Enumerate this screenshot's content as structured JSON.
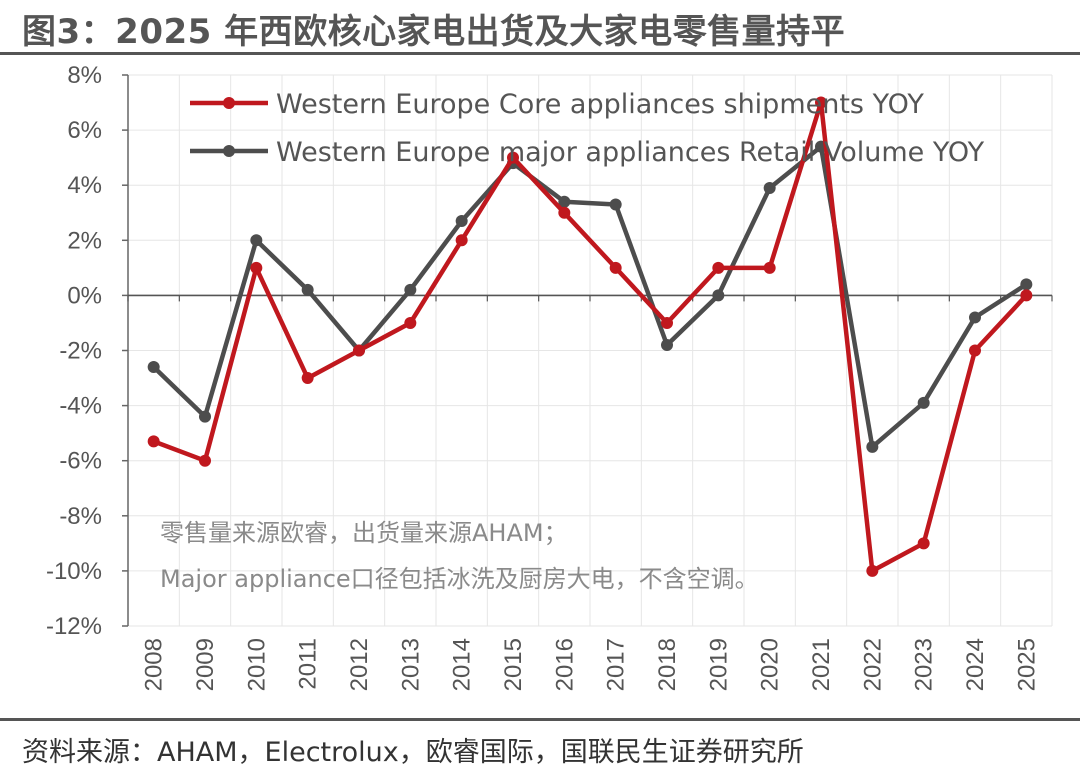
{
  "title": "图3：2025 年西欧核心家电出货及大家电零售量持平",
  "source": "资料来源：AHAM，Electrolux，欧睿国际，国联民生证券研究所",
  "note_lines": [
    "零售量来源欧睿，出货量来源AHAM；",
    "Major appliance口径包括冰洗及厨房大电，不含空调。"
  ],
  "chart_data": {
    "type": "line",
    "x": [
      "2008",
      "2009",
      "2010",
      "2011",
      "2012",
      "2013",
      "2014",
      "2015",
      "2016",
      "2017",
      "2018",
      "2019",
      "2020",
      "2021",
      "2022",
      "2023",
      "2024",
      "2025"
    ],
    "ylim": [
      -12,
      8
    ],
    "yticks": [
      8,
      6,
      4,
      2,
      0,
      -2,
      -4,
      -6,
      -8,
      -10,
      -12
    ],
    "ytick_labels": [
      "8%",
      "6%",
      "4%",
      "2%",
      "0%",
      "-2%",
      "-4%",
      "-6%",
      "-8%",
      "-10%",
      "-12%"
    ],
    "grid": true,
    "legend_position": "top",
    "series": [
      {
        "name": "Western Europe Core appliances shipments YOY",
        "color": "#C0181E",
        "values": [
          -5.3,
          -6.0,
          1.0,
          -3.0,
          -2.0,
          -1.0,
          2.0,
          5.0,
          3.0,
          1.0,
          -1.0,
          1.0,
          1.0,
          7.0,
          -10.0,
          -9.0,
          -2.0,
          0.0
        ]
      },
      {
        "name": "Western Europe major appliances Retail Volume YOY",
        "color": "#4D4D4D",
        "values": [
          -2.6,
          -4.4,
          2.0,
          0.2,
          -2.0,
          0.2,
          2.7,
          4.8,
          3.4,
          3.3,
          -1.8,
          0.0,
          3.9,
          5.4,
          -5.5,
          -3.9,
          -0.8,
          0.4
        ]
      }
    ]
  }
}
